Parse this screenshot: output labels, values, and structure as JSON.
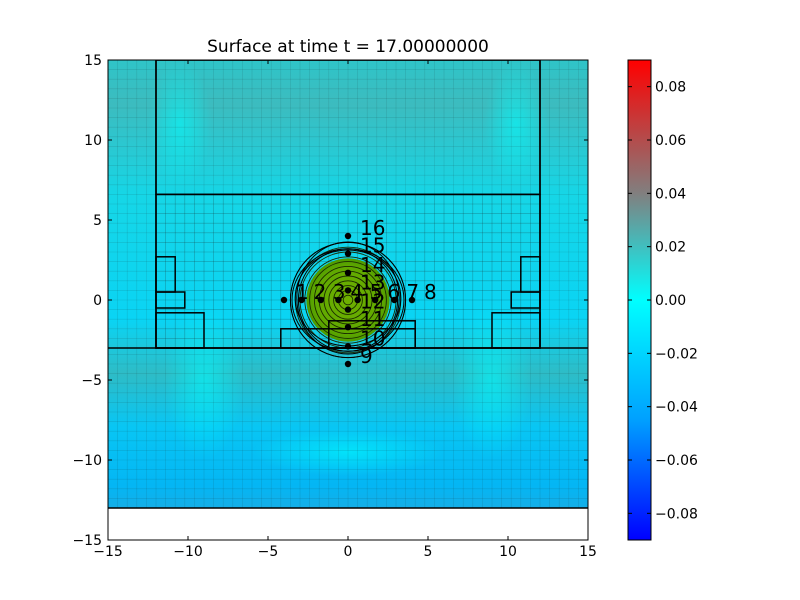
{
  "chart_data": {
    "type": "heatmap",
    "title": "Surface at time t =     17.00000000",
    "xlim": [
      -15,
      15
    ],
    "ylim": [
      -15,
      15
    ],
    "x_ticks": [
      "−15",
      "−10",
      "−5",
      "0",
      "5",
      "10",
      "15"
    ],
    "y_ticks": [
      "15",
      "10",
      "5",
      "0",
      "−5",
      "−10",
      "−15"
    ],
    "domain_extent": {
      "x": [
        -15,
        15
      ],
      "y": [
        -13,
        15
      ]
    },
    "colorbar": {
      "min": -0.09,
      "max": 0.09,
      "ticks": [
        "0.08",
        "0.06",
        "0.04",
        "0.02",
        "0.00",
        "−0.02",
        "−0.04",
        "−0.06",
        "−0.08"
      ],
      "colors": [
        "#0000ff",
        "#00a0ff",
        "#00ffff",
        "#808080",
        "#ff0000"
      ]
    },
    "grid_patches": [
      {
        "x": [
          -12,
          12
        ],
        "y": [
          -3,
          6.6
        ],
        "level": "fine"
      },
      {
        "x": [
          -12,
          12
        ],
        "y": [
          6.6,
          15
        ],
        "level": "coarse"
      },
      {
        "x": [
          -12,
          -10.8
        ],
        "y": [
          0.5,
          2.7
        ]
      },
      {
        "x": [
          -12,
          -10.2
        ],
        "y": [
          -0.5,
          0.5
        ]
      },
      {
        "x": [
          -12,
          -9
        ],
        "y": [
          -3,
          -0.8
        ]
      },
      {
        "x": [
          10.8,
          12
        ],
        "y": [
          0.5,
          2.7
        ]
      },
      {
        "x": [
          10.2,
          12
        ],
        "y": [
          -0.5,
          0.5
        ]
      },
      {
        "x": [
          9,
          12
        ],
        "y": [
          -3,
          -0.8
        ]
      },
      {
        "x": [
          -4.2,
          4.2
        ],
        "y": [
          -3,
          -1.8
        ]
      },
      {
        "x": [
          -1.2,
          4.2
        ],
        "y": [
          -3,
          -1.3
        ]
      }
    ],
    "hump": {
      "center": [
        0,
        0
      ],
      "radius": 3.5,
      "color": "#5fa800"
    },
    "gauges": [
      {
        "id": "1",
        "x": -4.0,
        "y": 0.0
      },
      {
        "id": "2",
        "x": -2.9,
        "y": 0.0
      },
      {
        "id": "3",
        "x": -1.7,
        "y": 0.0
      },
      {
        "id": "4",
        "x": -0.6,
        "y": 0.0
      },
      {
        "id": "5",
        "x": 0.6,
        "y": 0.0
      },
      {
        "id": "6",
        "x": 1.7,
        "y": 0.0
      },
      {
        "id": "7",
        "x": 2.9,
        "y": 0.0
      },
      {
        "id": "8",
        "x": 4.0,
        "y": 0.0
      },
      {
        "id": "9",
        "x": 0.0,
        "y": -4.0
      },
      {
        "id": "10",
        "x": 0.0,
        "y": -2.9
      },
      {
        "id": "11",
        "x": 0.0,
        "y": -1.7
      },
      {
        "id": "12",
        "x": 0.0,
        "y": -0.6
      },
      {
        "id": "13",
        "x": 0.0,
        "y": 0.6
      },
      {
        "id": "14",
        "x": 0.0,
        "y": 1.7
      },
      {
        "id": "15",
        "x": 0.0,
        "y": 2.9
      },
      {
        "id": "16",
        "x": 0.0,
        "y": 4.0
      }
    ]
  }
}
